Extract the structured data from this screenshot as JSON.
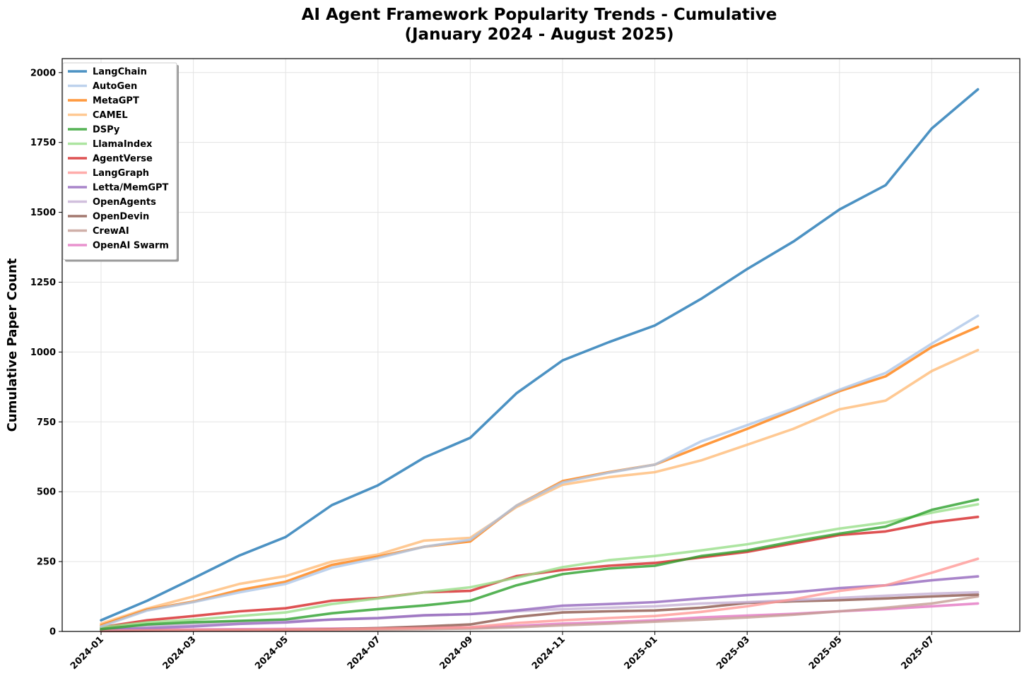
{
  "chart_data": {
    "type": "line",
    "title": [
      "AI Agent Framework Popularity Trends - Cumulative",
      "(January 2024 - August 2025)"
    ],
    "xlabel": "",
    "ylabel": "Cumulative Paper Count",
    "x": [
      "2024-01",
      "2024-02",
      "2024-03",
      "2024-04",
      "2024-05",
      "2024-06",
      "2024-07",
      "2024-08",
      "2024-09",
      "2024-10",
      "2024-11",
      "2024-12",
      "2025-01",
      "2025-02",
      "2025-03",
      "2025-04",
      "2025-05",
      "2025-06",
      "2025-07",
      "2025-08"
    ],
    "x_ticks": [
      "2024-01",
      "2024-03",
      "2024-05",
      "2024-07",
      "2024-09",
      "2024-11",
      "2025-01",
      "2025-03",
      "2025-05",
      "2025-07"
    ],
    "ylim": [
      0,
      2050
    ],
    "y_ticks": [
      0,
      250,
      500,
      750,
      1000,
      1250,
      1500,
      1750,
      2000
    ],
    "grid": true,
    "legend_position": "top-left",
    "series": [
      {
        "name": "LangChain",
        "color": "#1f77b4",
        "values": [
          40,
          110,
          190,
          272,
          338,
          452,
          523,
          622,
          693,
          852,
          970,
          1035,
          1095,
          1190,
          1297,
          1395,
          1510,
          1597,
          1800,
          1940
        ]
      },
      {
        "name": "AutoGen",
        "color": "#aec7e8",
        "values": [
          18,
          75,
          105,
          140,
          170,
          228,
          263,
          303,
          328,
          450,
          533,
          568,
          597,
          680,
          738,
          798,
          865,
          925,
          1030,
          1130
        ]
      },
      {
        "name": "MetaGPT",
        "color": "#ff7f0e",
        "values": [
          22,
          78,
          107,
          148,
          178,
          238,
          268,
          303,
          322,
          450,
          538,
          570,
          597,
          662,
          725,
          792,
          860,
          913,
          1018,
          1090
        ]
      },
      {
        "name": "CAMEL",
        "color": "#ffbb78",
        "values": [
          28,
          82,
          125,
          170,
          198,
          250,
          275,
          325,
          335,
          445,
          525,
          552,
          570,
          612,
          668,
          725,
          795,
          826,
          932,
          1007
        ]
      },
      {
        "name": "DSPy",
        "color": "#2ca02c",
        "values": [
          8,
          25,
          33,
          38,
          43,
          65,
          80,
          93,
          110,
          165,
          205,
          225,
          235,
          270,
          290,
          322,
          350,
          375,
          435,
          472
        ]
      },
      {
        "name": "LlamaIndex",
        "color": "#98df8a",
        "values": [
          15,
          32,
          42,
          55,
          68,
          98,
          118,
          140,
          158,
          192,
          230,
          255,
          270,
          290,
          312,
          340,
          368,
          390,
          425,
          455
        ]
      },
      {
        "name": "AgentVerse",
        "color": "#d62728",
        "values": [
          15,
          40,
          55,
          72,
          83,
          110,
          120,
          140,
          145,
          198,
          220,
          235,
          245,
          265,
          285,
          315,
          345,
          358,
          390,
          410
        ]
      },
      {
        "name": "LangGraph",
        "color": "#ff9896",
        "values": [
          2,
          4,
          5,
          5,
          6,
          7,
          10,
          12,
          15,
          30,
          40,
          48,
          55,
          70,
          90,
          115,
          145,
          165,
          210,
          260
        ]
      },
      {
        "name": "Letta/MemGPT",
        "color": "#9467bd",
        "values": [
          5,
          12,
          18,
          27,
          32,
          43,
          48,
          58,
          62,
          75,
          92,
          98,
          105,
          118,
          130,
          140,
          155,
          165,
          183,
          197
        ]
      },
      {
        "name": "OpenAgents",
        "color": "#c5b0d5",
        "values": [
          10,
          20,
          26,
          35,
          38,
          42,
          47,
          57,
          62,
          72,
          80,
          85,
          90,
          100,
          105,
          112,
          120,
          128,
          135,
          140
        ]
      },
      {
        "name": "OpenDevin",
        "color": "#8c564b",
        "values": [
          2,
          3,
          4,
          5,
          6,
          8,
          12,
          18,
          25,
          52,
          68,
          72,
          75,
          85,
          102,
          108,
          112,
          118,
          125,
          132
        ]
      },
      {
        "name": "CrewAI",
        "color": "#c49c94",
        "values": [
          1,
          2,
          3,
          3,
          4,
          5,
          6,
          8,
          10,
          15,
          22,
          28,
          35,
          42,
          50,
          60,
          72,
          85,
          100,
          125
        ]
      },
      {
        "name": "OpenAI Swarm",
        "color": "#e377c2",
        "values": [
          3,
          6,
          7,
          8,
          9,
          10,
          11,
          13,
          14,
          20,
          28,
          33,
          40,
          50,
          57,
          63,
          72,
          80,
          90,
          100
        ]
      }
    ]
  }
}
